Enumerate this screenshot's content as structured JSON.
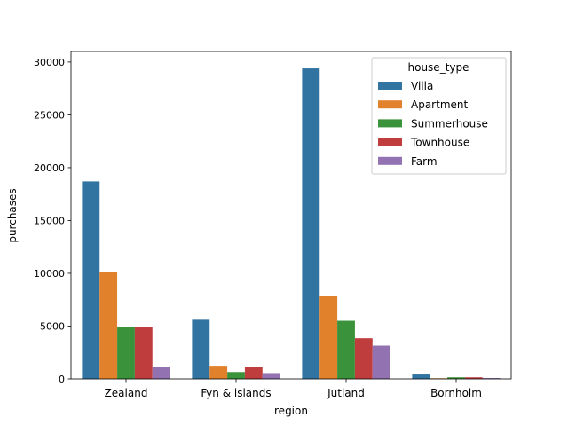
{
  "chart_data": {
    "type": "bar",
    "xlabel": "region",
    "ylabel": "purchases",
    "categories": [
      "Zealand",
      "Fyn & islands",
      "Jutland",
      "Bornholm"
    ],
    "ylim": [
      0,
      30000
    ],
    "yticks": [
      0,
      5000,
      10000,
      15000,
      20000,
      25000,
      30000
    ],
    "grid": false,
    "legend": {
      "title": "house_type",
      "placement": "top-right"
    },
    "series": [
      {
        "name": "Villa",
        "color": "#3274a1",
        "values": [
          18700,
          5600,
          29400,
          500
        ]
      },
      {
        "name": "Apartment",
        "color": "#e1812c",
        "values": [
          10100,
          1250,
          7850,
          60
        ]
      },
      {
        "name": "Summerhouse",
        "color": "#3a923a",
        "values": [
          4950,
          650,
          5500,
          150
        ]
      },
      {
        "name": "Townhouse",
        "color": "#c03d3e",
        "values": [
          4950,
          1150,
          3850,
          150
        ]
      },
      {
        "name": "Farm",
        "color": "#9372b2",
        "values": [
          1100,
          550,
          3150,
          80
        ]
      }
    ]
  }
}
